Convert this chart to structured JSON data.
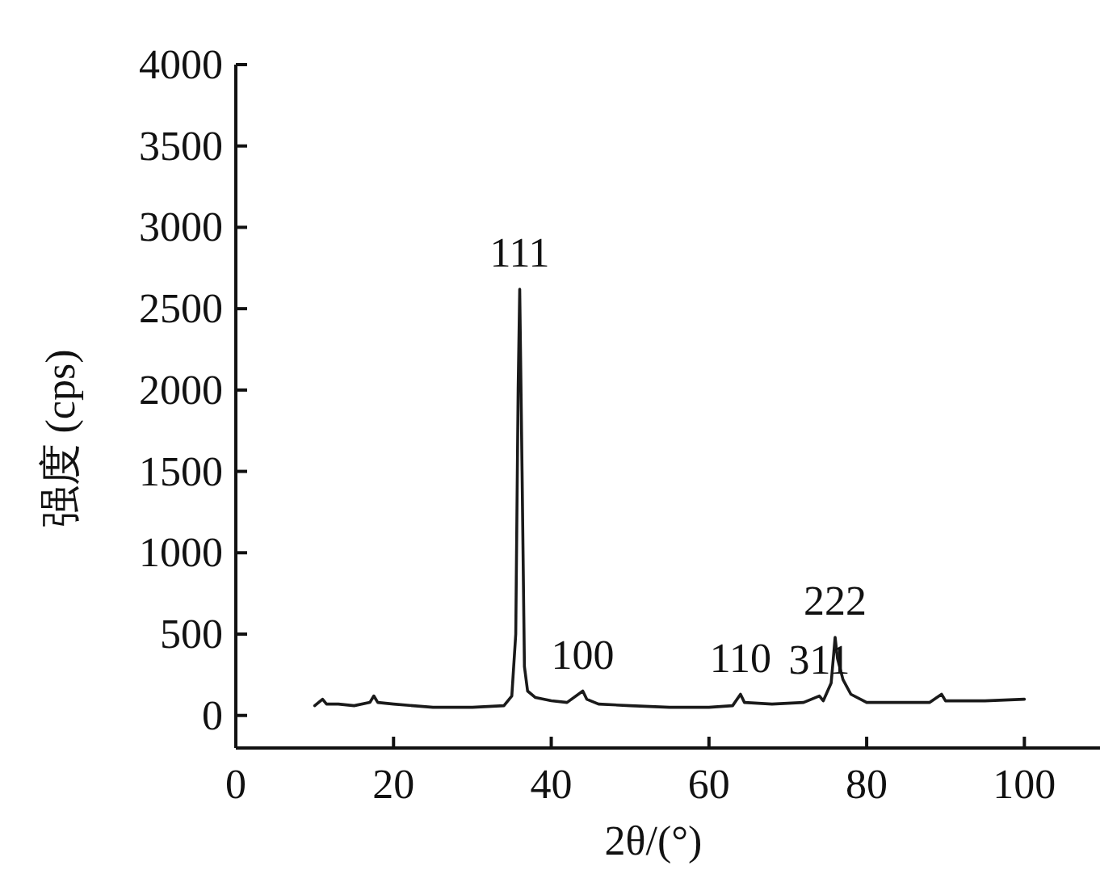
{
  "chart_data": {
    "type": "line",
    "xlabel": "2θ/(°)",
    "ylabel": "强度 (cps)",
    "xlim": [
      0,
      110
    ],
    "ylim": [
      -200,
      4000
    ],
    "xticks": [
      0,
      20,
      40,
      60,
      80,
      100
    ],
    "yticks": [
      0,
      500,
      1000,
      1500,
      2000,
      2500,
      3000,
      3500,
      4000
    ],
    "grid": false,
    "marker": "none",
    "line_style": "solid",
    "series": [
      {
        "color": "#1a1a1a",
        "x": [
          10,
          11,
          11.5,
          13,
          15,
          17,
          17.5,
          18,
          20,
          25,
          30,
          34,
          35,
          35.5,
          35.8,
          36,
          36.3,
          36.6,
          37,
          38,
          40,
          42,
          44,
          44.5,
          46,
          50,
          55,
          60,
          63,
          64,
          64.5,
          68,
          72,
          74,
          74.5,
          75.5,
          76,
          76.3,
          77,
          78,
          80,
          85,
          88,
          89.5,
          90,
          95,
          100
        ],
        "values": [
          60,
          100,
          70,
          70,
          60,
          80,
          120,
          80,
          70,
          50,
          50,
          60,
          120,
          500,
          2000,
          2620,
          1500,
          300,
          150,
          110,
          90,
          80,
          150,
          100,
          70,
          60,
          50,
          50,
          60,
          130,
          80,
          70,
          80,
          120,
          90,
          200,
          480,
          350,
          220,
          130,
          80,
          80,
          80,
          130,
          90,
          90,
          100
        ]
      }
    ],
    "annotations": [
      {
        "text": "111",
        "x": 36,
        "y": 2620
      },
      {
        "text": "100",
        "x": 44,
        "y": 150
      },
      {
        "text": "110",
        "x": 64,
        "y": 130
      },
      {
        "text": "311",
        "x": 74,
        "y": 120
      },
      {
        "text": "222",
        "x": 76,
        "y": 480
      }
    ]
  }
}
